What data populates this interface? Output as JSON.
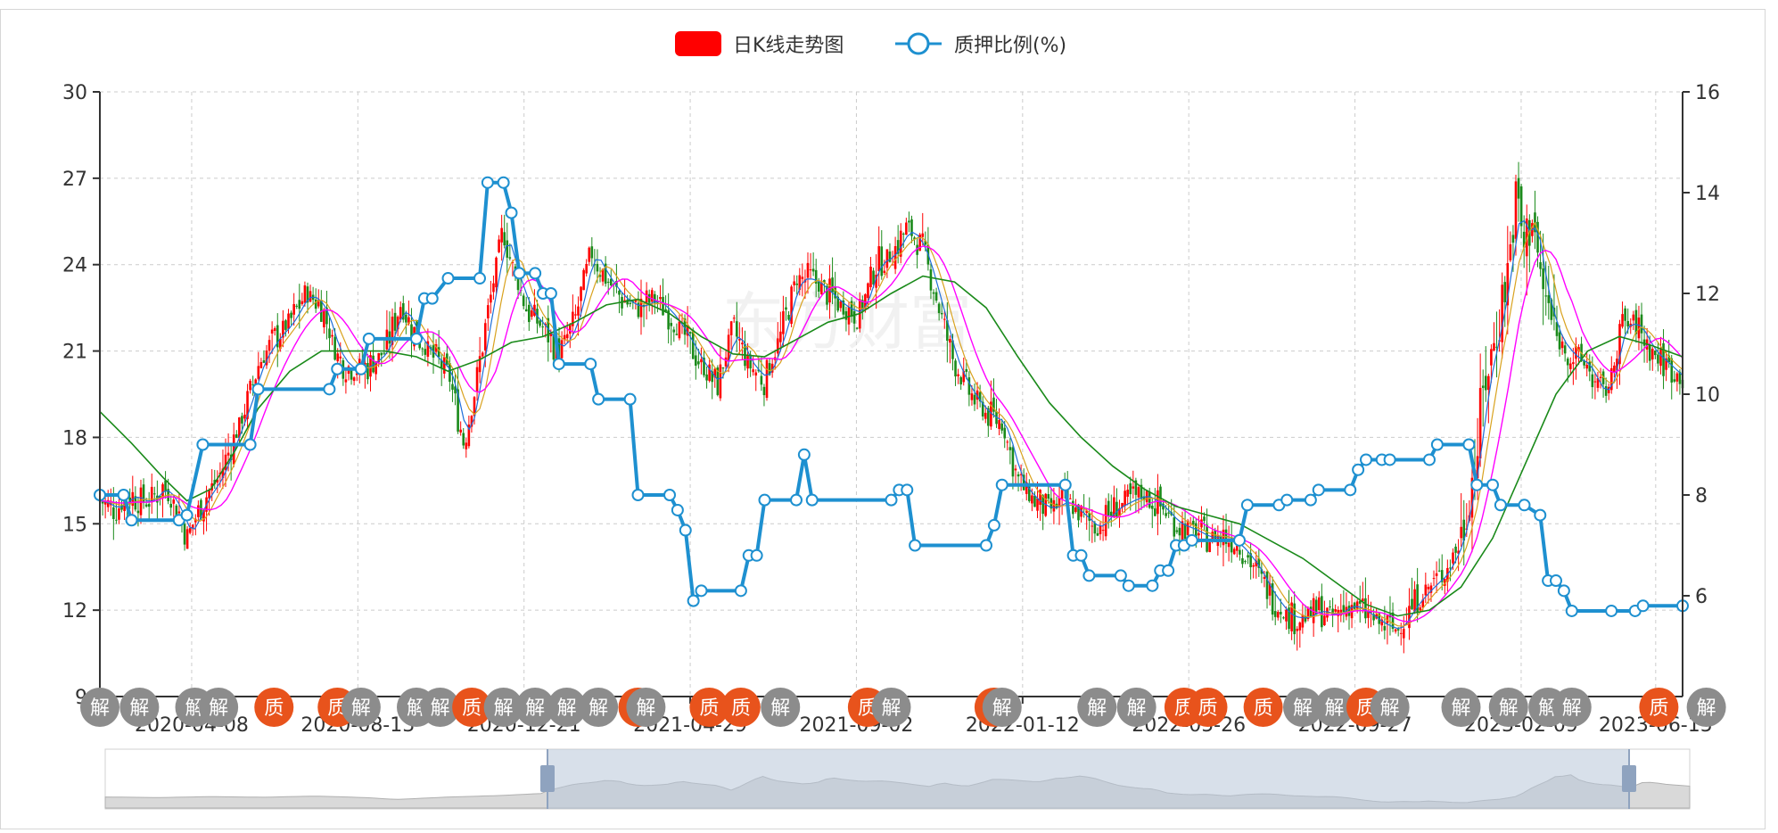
{
  "chart_data": {
    "type": "candlestick+line",
    "legend": [
      {
        "label": "日K线走势图",
        "color": "#ff0000"
      },
      {
        "label": "质押比例(%)",
        "color": "#1e90d0"
      }
    ],
    "y_left": {
      "min": 9,
      "max": 30,
      "ticks": [
        "30",
        "27",
        "24",
        "21",
        "18",
        "15",
        "12",
        "9"
      ]
    },
    "y_right": {
      "min": 4,
      "max": 16,
      "ticks": [
        "16",
        "14",
        "12",
        "10",
        "8",
        "6"
      ]
    },
    "x_labels": [
      "2020-04-08",
      "2020-08-13",
      "2020-12-21",
      "2021-04-29",
      "2021-09-02",
      "2022-01-12",
      "2022-05-26",
      "2022-09-27",
      "2023-02-09",
      "2023-06-15"
    ],
    "x_label_positions": [
      0.058,
      0.163,
      0.268,
      0.373,
      0.478,
      0.583,
      0.688,
      0.793,
      0.898,
      0.983
    ],
    "pledge_ratio": [
      [
        0.0,
        8.0
      ],
      [
        0.015,
        8.0
      ],
      [
        0.02,
        7.5
      ],
      [
        0.05,
        7.5
      ],
      [
        0.055,
        7.6
      ],
      [
        0.065,
        9.0
      ],
      [
        0.095,
        9.0
      ],
      [
        0.1,
        10.1
      ],
      [
        0.145,
        10.1
      ],
      [
        0.15,
        10.5
      ],
      [
        0.165,
        10.5
      ],
      [
        0.17,
        11.1
      ],
      [
        0.2,
        11.1
      ],
      [
        0.205,
        11.9
      ],
      [
        0.21,
        11.9
      ],
      [
        0.22,
        12.3
      ],
      [
        0.24,
        12.3
      ],
      [
        0.245,
        14.2
      ],
      [
        0.255,
        14.2
      ],
      [
        0.26,
        13.6
      ],
      [
        0.265,
        12.4
      ],
      [
        0.275,
        12.4
      ],
      [
        0.28,
        12.0
      ],
      [
        0.285,
        12.0
      ],
      [
        0.29,
        10.6
      ],
      [
        0.31,
        10.6
      ],
      [
        0.315,
        9.9
      ],
      [
        0.335,
        9.9
      ],
      [
        0.34,
        8.0
      ],
      [
        0.36,
        8.0
      ],
      [
        0.365,
        7.7
      ],
      [
        0.37,
        7.3
      ],
      [
        0.375,
        5.9
      ],
      [
        0.38,
        6.1
      ],
      [
        0.405,
        6.1
      ],
      [
        0.41,
        6.8
      ],
      [
        0.415,
        6.8
      ],
      [
        0.42,
        7.9
      ],
      [
        0.44,
        7.9
      ],
      [
        0.445,
        8.8
      ],
      [
        0.45,
        7.9
      ],
      [
        0.5,
        7.9
      ],
      [
        0.505,
        8.1
      ],
      [
        0.51,
        8.1
      ],
      [
        0.515,
        7.0
      ],
      [
        0.56,
        7.0
      ],
      [
        0.565,
        7.4
      ],
      [
        0.57,
        8.2
      ],
      [
        0.61,
        8.2
      ],
      [
        0.615,
        6.8
      ],
      [
        0.62,
        6.8
      ],
      [
        0.625,
        6.4
      ],
      [
        0.645,
        6.4
      ],
      [
        0.65,
        6.2
      ],
      [
        0.665,
        6.2
      ],
      [
        0.67,
        6.5
      ],
      [
        0.675,
        6.5
      ],
      [
        0.68,
        7.0
      ],
      [
        0.685,
        7.0
      ],
      [
        0.69,
        7.1
      ],
      [
        0.72,
        7.1
      ],
      [
        0.725,
        7.8
      ],
      [
        0.745,
        7.8
      ],
      [
        0.75,
        7.9
      ],
      [
        0.765,
        7.9
      ],
      [
        0.77,
        8.1
      ],
      [
        0.79,
        8.1
      ],
      [
        0.795,
        8.5
      ],
      [
        0.8,
        8.7
      ],
      [
        0.81,
        8.7
      ],
      [
        0.815,
        8.7
      ],
      [
        0.84,
        8.7
      ],
      [
        0.845,
        9.0
      ],
      [
        0.865,
        9.0
      ],
      [
        0.87,
        8.2
      ],
      [
        0.88,
        8.2
      ],
      [
        0.885,
        7.8
      ],
      [
        0.9,
        7.8
      ],
      [
        0.91,
        7.6
      ],
      [
        0.915,
        6.3
      ],
      [
        0.92,
        6.3
      ],
      [
        0.925,
        6.1
      ],
      [
        0.93,
        5.7
      ],
      [
        0.955,
        5.7
      ],
      [
        0.97,
        5.7
      ],
      [
        0.975,
        5.8
      ],
      [
        1.0,
        5.8
      ]
    ],
    "close_path": [
      [
        0.0,
        15.8
      ],
      [
        0.01,
        15.5
      ],
      [
        0.02,
        16.0
      ],
      [
        0.03,
        15.7
      ],
      [
        0.04,
        16.3
      ],
      [
        0.05,
        15.4
      ],
      [
        0.055,
        14.5
      ],
      [
        0.065,
        15.8
      ],
      [
        0.075,
        16.6
      ],
      [
        0.085,
        18.0
      ],
      [
        0.095,
        19.5
      ],
      [
        0.1,
        20.5
      ],
      [
        0.11,
        21.4
      ],
      [
        0.12,
        22.0
      ],
      [
        0.13,
        23.0
      ],
      [
        0.14,
        22.6
      ],
      [
        0.15,
        20.8
      ],
      [
        0.16,
        20.3
      ],
      [
        0.17,
        20.5
      ],
      [
        0.18,
        21.0
      ],
      [
        0.19,
        22.6
      ],
      [
        0.2,
        21.5
      ],
      [
        0.21,
        20.8
      ],
      [
        0.22,
        20.3
      ],
      [
        0.23,
        17.8
      ],
      [
        0.235,
        19.0
      ],
      [
        0.245,
        22.3
      ],
      [
        0.255,
        25.3
      ],
      [
        0.26,
        24.0
      ],
      [
        0.27,
        22.4
      ],
      [
        0.28,
        21.8
      ],
      [
        0.29,
        21.0
      ],
      [
        0.3,
        22.0
      ],
      [
        0.31,
        24.5
      ],
      [
        0.32,
        23.5
      ],
      [
        0.33,
        22.8
      ],
      [
        0.34,
        22.5
      ],
      [
        0.35,
        22.8
      ],
      [
        0.36,
        22.3
      ],
      [
        0.37,
        21.5
      ],
      [
        0.38,
        20.5
      ],
      [
        0.39,
        19.8
      ],
      [
        0.4,
        21.8
      ],
      [
        0.41,
        20.5
      ],
      [
        0.42,
        20.0
      ],
      [
        0.43,
        21.5
      ],
      [
        0.44,
        23.5
      ],
      [
        0.45,
        23.5
      ],
      [
        0.46,
        23.0
      ],
      [
        0.47,
        22.5
      ],
      [
        0.48,
        22.3
      ],
      [
        0.49,
        24.0
      ],
      [
        0.5,
        24.3
      ],
      [
        0.51,
        25.3
      ],
      [
        0.52,
        24.5
      ],
      [
        0.525,
        23.5
      ],
      [
        0.53,
        22.5
      ],
      [
        0.54,
        20.5
      ],
      [
        0.55,
        19.5
      ],
      [
        0.56,
        18.8
      ],
      [
        0.57,
        18.5
      ],
      [
        0.575,
        17.5
      ],
      [
        0.58,
        16.5
      ],
      [
        0.59,
        15.8
      ],
      [
        0.6,
        15.5
      ],
      [
        0.61,
        15.8
      ],
      [
        0.62,
        15.3
      ],
      [
        0.63,
        14.8
      ],
      [
        0.64,
        15.5
      ],
      [
        0.65,
        15.8
      ],
      [
        0.66,
        16.0
      ],
      [
        0.67,
        15.6
      ],
      [
        0.68,
        15.0
      ],
      [
        0.69,
        14.8
      ],
      [
        0.7,
        14.5
      ],
      [
        0.71,
        14.6
      ],
      [
        0.72,
        14.2
      ],
      [
        0.73,
        13.5
      ],
      [
        0.74,
        12.5
      ],
      [
        0.75,
        11.8
      ],
      [
        0.76,
        11.7
      ],
      [
        0.77,
        12.0
      ],
      [
        0.78,
        11.8
      ],
      [
        0.79,
        12.2
      ],
      [
        0.8,
        11.9
      ],
      [
        0.81,
        11.5
      ],
      [
        0.82,
        11.3
      ],
      [
        0.83,
        12.2
      ],
      [
        0.84,
        12.8
      ],
      [
        0.85,
        13.3
      ],
      [
        0.86,
        14.5
      ],
      [
        0.865,
        16.0
      ],
      [
        0.87,
        17.5
      ],
      [
        0.875,
        20.0
      ],
      [
        0.88,
        21.0
      ],
      [
        0.885,
        22.5
      ],
      [
        0.89,
        24.0
      ],
      [
        0.895,
        26.5
      ],
      [
        0.9,
        24.5
      ],
      [
        0.905,
        26.0
      ],
      [
        0.91,
        23.5
      ],
      [
        0.915,
        22.5
      ],
      [
        0.92,
        21.5
      ],
      [
        0.93,
        20.8
      ],
      [
        0.94,
        20.5
      ],
      [
        0.945,
        19.8
      ],
      [
        0.95,
        19.5
      ],
      [
        0.955,
        20.0
      ],
      [
        0.96,
        21.8
      ],
      [
        0.97,
        22.0
      ],
      [
        0.975,
        21.5
      ],
      [
        0.98,
        21.0
      ],
      [
        0.99,
        20.5
      ],
      [
        1.0,
        20.0
      ]
    ],
    "ma_long": [
      [
        0.0,
        18.9
      ],
      [
        0.02,
        17.8
      ],
      [
        0.04,
        16.6
      ],
      [
        0.055,
        15.8
      ],
      [
        0.07,
        16.2
      ],
      [
        0.085,
        17.5
      ],
      [
        0.1,
        19.0
      ],
      [
        0.12,
        20.3
      ],
      [
        0.14,
        21.0
      ],
      [
        0.16,
        21.0
      ],
      [
        0.18,
        21.0
      ],
      [
        0.2,
        20.8
      ],
      [
        0.22,
        20.3
      ],
      [
        0.24,
        20.7
      ],
      [
        0.26,
        21.3
      ],
      [
        0.28,
        21.5
      ],
      [
        0.3,
        22.0
      ],
      [
        0.32,
        22.6
      ],
      [
        0.34,
        22.8
      ],
      [
        0.36,
        22.3
      ],
      [
        0.38,
        21.5
      ],
      [
        0.4,
        20.9
      ],
      [
        0.42,
        20.8
      ],
      [
        0.44,
        21.4
      ],
      [
        0.46,
        22.0
      ],
      [
        0.48,
        22.3
      ],
      [
        0.5,
        23.0
      ],
      [
        0.52,
        23.6
      ],
      [
        0.54,
        23.4
      ],
      [
        0.56,
        22.5
      ],
      [
        0.58,
        20.8
      ],
      [
        0.6,
        19.2
      ],
      [
        0.62,
        18.0
      ],
      [
        0.64,
        17.0
      ],
      [
        0.66,
        16.2
      ],
      [
        0.68,
        15.6
      ],
      [
        0.7,
        15.3
      ],
      [
        0.72,
        15.0
      ],
      [
        0.74,
        14.4
      ],
      [
        0.76,
        13.8
      ],
      [
        0.78,
        13.0
      ],
      [
        0.8,
        12.2
      ],
      [
        0.82,
        11.8
      ],
      [
        0.84,
        12.0
      ],
      [
        0.86,
        12.8
      ],
      [
        0.88,
        14.5
      ],
      [
        0.9,
        17.0
      ],
      [
        0.92,
        19.5
      ],
      [
        0.94,
        21.0
      ],
      [
        0.96,
        21.5
      ],
      [
        0.98,
        21.2
      ],
      [
        1.0,
        20.8
      ]
    ],
    "watermark": "东方财富",
    "markers": [
      {
        "x": 0.0,
        "label": "解",
        "color": "#8c8c8c"
      },
      {
        "x": 0.025,
        "label": "解",
        "color": "#8c8c8c"
      },
      {
        "x": 0.06,
        "label": "解",
        "color": "#8c8c8c"
      },
      {
        "x": 0.075,
        "label": "解",
        "color": "#8c8c8c"
      },
      {
        "x": 0.11,
        "label": "质",
        "color": "#e8531c"
      },
      {
        "x": 0.15,
        "label": "质",
        "color": "#e8531c"
      },
      {
        "x": 0.165,
        "label": "解",
        "color": "#8c8c8c"
      },
      {
        "x": 0.2,
        "label": "解",
        "color": "#8c8c8c"
      },
      {
        "x": 0.215,
        "label": "解",
        "color": "#8c8c8c"
      },
      {
        "x": 0.235,
        "label": "质",
        "color": "#e8531c"
      },
      {
        "x": 0.255,
        "label": "解",
        "color": "#8c8c8c"
      },
      {
        "x": 0.275,
        "label": "解",
        "color": "#8c8c8c"
      },
      {
        "x": 0.295,
        "label": "解",
        "color": "#8c8c8c"
      },
      {
        "x": 0.315,
        "label": "解",
        "color": "#8c8c8c"
      },
      {
        "x": 0.34,
        "label": "质",
        "color": "#e8531c"
      },
      {
        "x": 0.345,
        "label": "解",
        "color": "#8c8c8c"
      },
      {
        "x": 0.385,
        "label": "质",
        "color": "#e8531c"
      },
      {
        "x": 0.405,
        "label": "质",
        "color": "#e8531c"
      },
      {
        "x": 0.43,
        "label": "解",
        "color": "#8c8c8c"
      },
      {
        "x": 0.485,
        "label": "质",
        "color": "#e8531c"
      },
      {
        "x": 0.5,
        "label": "解",
        "color": "#8c8c8c"
      },
      {
        "x": 0.565,
        "label": "质",
        "color": "#e8531c"
      },
      {
        "x": 0.57,
        "label": "解",
        "color": "#8c8c8c"
      },
      {
        "x": 0.63,
        "label": "解",
        "color": "#8c8c8c"
      },
      {
        "x": 0.655,
        "label": "解",
        "color": "#8c8c8c"
      },
      {
        "x": 0.685,
        "label": "质",
        "color": "#e8531c"
      },
      {
        "x": 0.7,
        "label": "质",
        "color": "#e8531c"
      },
      {
        "x": 0.735,
        "label": "质",
        "color": "#e8531c"
      },
      {
        "x": 0.76,
        "label": "解",
        "color": "#8c8c8c"
      },
      {
        "x": 0.78,
        "label": "解",
        "color": "#8c8c8c"
      },
      {
        "x": 0.8,
        "label": "质",
        "color": "#e8531c"
      },
      {
        "x": 0.815,
        "label": "解",
        "color": "#8c8c8c"
      },
      {
        "x": 0.86,
        "label": "解",
        "color": "#8c8c8c"
      },
      {
        "x": 0.89,
        "label": "解",
        "color": "#8c8c8c"
      },
      {
        "x": 0.915,
        "label": "解",
        "color": "#8c8c8c"
      },
      {
        "x": 0.93,
        "label": "解",
        "color": "#8c8c8c"
      },
      {
        "x": 0.985,
        "label": "质",
        "color": "#e8531c"
      },
      {
        "x": 1.015,
        "label": "解",
        "color": "#8c8c8c"
      }
    ],
    "colors": {
      "up": "#ff0000",
      "down": "#1a8a1a",
      "pledge": "#1e90d0",
      "ma5": "#1e6fd9",
      "ma10": "#d9a21e",
      "ma20": "#ff00ff",
      "ma60": "#1a8a1a",
      "grid": "#cccccc",
      "axis": "#333333",
      "marker_pledge": "#e8531c",
      "marker_release": "#8c8c8c"
    }
  }
}
